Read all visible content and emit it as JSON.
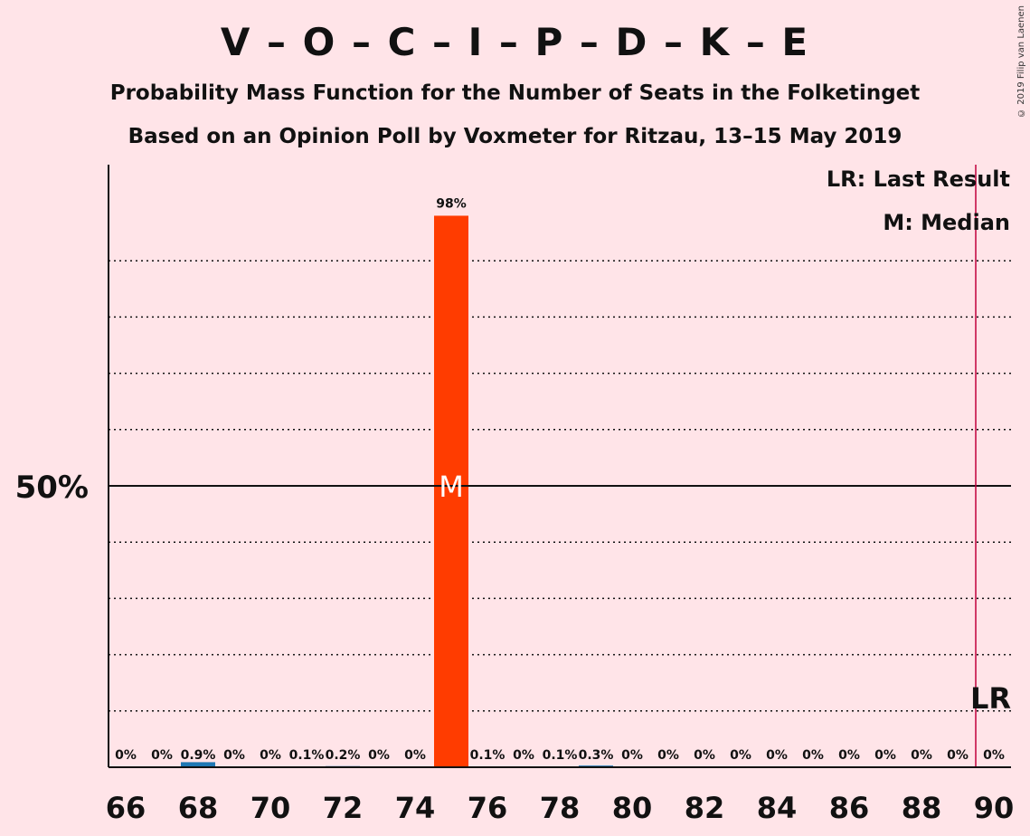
{
  "title": "V – O – C – I – P – D – K – E",
  "subtitle1": "Probability Mass Function for the Number of Seats in the Folketinget",
  "subtitle2": "Based on an Opinion Poll by Voxmeter for Ritzau, 13–15 May 2019",
  "copyright": "© 2019 Filip van Laenen",
  "legend": {
    "last_result": "LR: Last Result",
    "median": "M: Median"
  },
  "colors": {
    "background": "#FFE4E8",
    "bar_main": "#FF3C00",
    "bar_other": "#1F78B4",
    "last_result_line": "#C0003C"
  },
  "chart_data": {
    "type": "bar",
    "x": [
      66,
      67,
      68,
      69,
      70,
      71,
      72,
      73,
      74,
      75,
      76,
      77,
      78,
      79,
      80,
      81,
      82,
      83,
      84,
      85,
      86,
      87,
      88,
      89,
      90
    ],
    "values": [
      0,
      0,
      0.9,
      0,
      0,
      0.1,
      0.2,
      0,
      0,
      98,
      0.1,
      0,
      0.1,
      0.3,
      0,
      0,
      0,
      0,
      0,
      0,
      0,
      0,
      0,
      0,
      0
    ],
    "labels": [
      "0%",
      "0%",
      "0.9%",
      "0%",
      "0%",
      "0.1%",
      "0.2%",
      "0%",
      "0%",
      "98%",
      "0.1%",
      "0%",
      "0.1%",
      "0.3%",
      "0%",
      "0%",
      "0%",
      "0%",
      "0%",
      "0%",
      "0%",
      "0%",
      "0%",
      "0%",
      "0%"
    ],
    "xticks": [
      66,
      68,
      70,
      72,
      74,
      76,
      78,
      80,
      82,
      84,
      86,
      88,
      90
    ],
    "ylim": [
      0,
      100
    ],
    "y_gridlines": [
      10,
      20,
      30,
      40,
      60,
      70,
      80,
      90
    ],
    "y_major": 50,
    "y_major_label": "50%",
    "median_x": 75,
    "median_label": "M",
    "last_result_x": 89.5,
    "last_result_label": "LR"
  }
}
